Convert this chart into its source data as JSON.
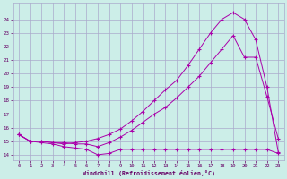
{
  "xlabel": "Windchill (Refroidissement éolien,°C)",
  "bg_color": "#cceee8",
  "grid_color": "#aaaacc",
  "line_color": "#aa00aa",
  "xlim": [
    -0.5,
    23.5
  ],
  "ylim": [
    13.6,
    25.2
  ],
  "yticks": [
    14,
    15,
    16,
    17,
    18,
    19,
    20,
    21,
    22,
    23,
    24
  ],
  "xticks": [
    0,
    1,
    2,
    3,
    4,
    5,
    6,
    7,
    8,
    9,
    10,
    11,
    12,
    13,
    14,
    15,
    16,
    17,
    18,
    19,
    20,
    21,
    22,
    23
  ],
  "series1_x": [
    0,
    1,
    2,
    3,
    4,
    5,
    6,
    7,
    8,
    9,
    10,
    11,
    12,
    13,
    14,
    15,
    16,
    17,
    18,
    19,
    20,
    21,
    22,
    23
  ],
  "series1_y": [
    15.5,
    15.0,
    14.9,
    14.8,
    14.6,
    14.5,
    14.4,
    14.0,
    14.1,
    14.4,
    14.4,
    14.4,
    14.4,
    14.4,
    14.4,
    14.4,
    14.4,
    14.4,
    14.4,
    14.4,
    14.4,
    14.4,
    14.4,
    14.1
  ],
  "series2_x": [
    0,
    1,
    2,
    3,
    4,
    5,
    6,
    7,
    8,
    9,
    10,
    11,
    12,
    13,
    14,
    15,
    16,
    17,
    18,
    19,
    20,
    21,
    22,
    23
  ],
  "series2_y": [
    15.5,
    15.0,
    15.0,
    14.9,
    14.9,
    14.8,
    14.8,
    14.6,
    14.9,
    15.3,
    15.8,
    16.4,
    17.0,
    17.5,
    18.2,
    19.0,
    19.8,
    20.8,
    21.8,
    22.8,
    21.2,
    21.2,
    18.3,
    15.2
  ],
  "series3_x": [
    0,
    1,
    2,
    3,
    4,
    5,
    6,
    7,
    8,
    9,
    10,
    11,
    12,
    13,
    14,
    15,
    16,
    17,
    18,
    19,
    20,
    21,
    22,
    23
  ],
  "series3_y": [
    15.5,
    15.0,
    15.0,
    14.9,
    14.8,
    14.9,
    15.0,
    15.2,
    15.5,
    15.9,
    16.5,
    17.2,
    18.0,
    18.8,
    19.5,
    20.6,
    21.8,
    23.0,
    24.0,
    24.5,
    24.0,
    22.5,
    19.0,
    14.2
  ]
}
